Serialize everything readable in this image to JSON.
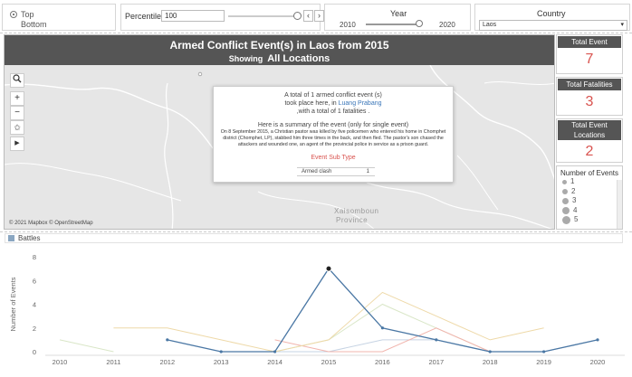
{
  "filters": {
    "sort_options": [
      {
        "label": "Top",
        "selected": true
      },
      {
        "label": "Bottom",
        "selected": false
      }
    ],
    "percentile_label": "Percentile",
    "percentile_value": "100",
    "prev_symbol": "‹",
    "next_symbol": "›",
    "year_label": "Year",
    "year_start": "2010",
    "year_end": "2020",
    "country_label": "Country",
    "country_value": "Laos"
  },
  "map": {
    "title": "Armed Conflict Event(s) in Laos from 2015",
    "subtitle_prefix": "Showing",
    "subtitle_value": "All Locations",
    "attribution": "© 2021 Mapbox © OpenStreetMap",
    "place_label_1": "Xaisomboun",
    "place_label_2": "Province",
    "tools": [
      "search-icon",
      "zoom-in-icon",
      "zoom-out-icon",
      "pin-icon",
      "play-icon"
    ]
  },
  "tooltip": {
    "line1": "A total of 1 armed conflict event (s)",
    "line2_prefix": "took place here, in",
    "line2_place": "Luang Prabang",
    "line3": ",with a total of 1 fatalities .",
    "summary_title": "Here is a summary of the event (only for single event)",
    "summary": "On 8 September 2015, a Christian pastor was killed by five policemen who entered his home in Chomphet district (Chomphet, LP), stabbed him three times in the back, and then fled. The pastor's son chased the attackers and wounded one, an agent of the provincial police in service as a prison guard.",
    "subtype_title": "Event Sub Type",
    "subtype_name": "Armed clash",
    "subtype_count": "1"
  },
  "kpis": [
    {
      "label": "Total Event",
      "value": "7"
    },
    {
      "label": "Total Fatalities",
      "value": "3"
    },
    {
      "label": "Total Event Locations",
      "value": "2"
    }
  ],
  "legend": {
    "title": "Number of Events",
    "items": [
      "1",
      "2",
      "3",
      "4",
      "5"
    ]
  },
  "event_type": {
    "label": "Battles",
    "color": "#8aa6c1"
  },
  "chart_data": {
    "type": "line",
    "ylabel": "Number of Events",
    "x": [
      2010,
      2011,
      2012,
      2013,
      2014,
      2015,
      2016,
      2017,
      2018,
      2019,
      2020
    ],
    "ylim": [
      0,
      8
    ],
    "yticks": [
      0,
      2,
      4,
      6,
      8
    ],
    "grid": false,
    "series": [
      {
        "color": "#4a77a4",
        "values": [
          null,
          null,
          1,
          0,
          0,
          7,
          2,
          1,
          0,
          0,
          1
        ]
      },
      {
        "color": "#eed9a8",
        "values": [
          null,
          2,
          2,
          1,
          0,
          1,
          5,
          3,
          1,
          2,
          null
        ]
      },
      {
        "color": "#f1b4ad",
        "values": [
          null,
          null,
          null,
          null,
          1,
          0,
          0,
          2,
          0,
          null,
          null
        ]
      },
      {
        "color": "#d9e6c7",
        "values": [
          1,
          0,
          null,
          null,
          0,
          1,
          4,
          2,
          0,
          null,
          null
        ]
      },
      {
        "color": "#c6d3e3",
        "values": [
          null,
          null,
          null,
          null,
          0,
          0,
          1,
          1,
          0,
          0,
          1
        ]
      }
    ],
    "highlight_point": {
      "x": 2015,
      "y": 7
    }
  }
}
